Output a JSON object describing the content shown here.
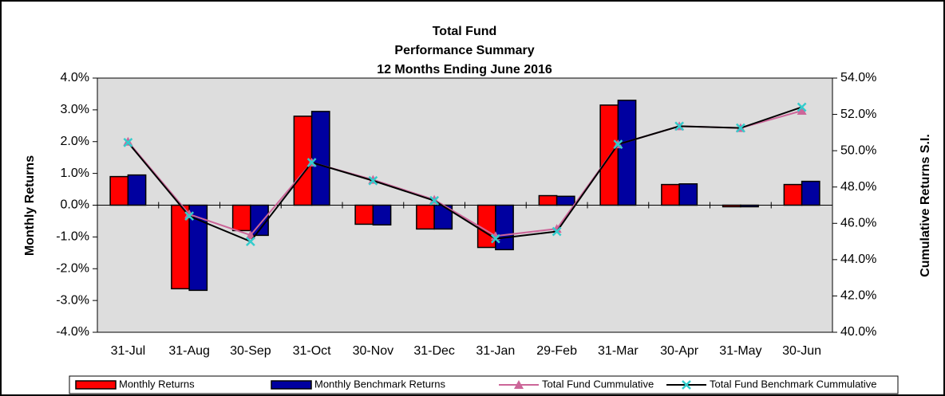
{
  "chart_data": {
    "type": "bar",
    "title": [
      "Total Fund",
      "Performance Summary",
      "12 Months Ending June 2016"
    ],
    "ylabel": "Monthly Returns",
    "y2label": "Cumulative Returns S.I.",
    "categories": [
      "31-Jul",
      "31-Aug",
      "30-Sep",
      "31-Oct",
      "30-Nov",
      "31-Dec",
      "31-Jan",
      "29-Feb",
      "31-Mar",
      "30-Apr",
      "31-May",
      "30-Jun"
    ],
    "series": [
      {
        "name": "Monthly Returns",
        "type": "bar",
        "color": "#ff0000",
        "values": [
          0.9,
          -2.63,
          -0.8,
          2.8,
          -0.6,
          -0.75,
          -1.33,
          0.3,
          3.15,
          0.65,
          -0.05,
          0.65
        ]
      },
      {
        "name": "Monthly Benchmark Returns",
        "type": "bar",
        "color": "#0000a0",
        "values": [
          0.95,
          -2.68,
          -0.95,
          2.95,
          -0.62,
          -0.75,
          -1.4,
          0.28,
          3.3,
          0.67,
          -0.05,
          0.75
        ]
      },
      {
        "name": "Total Fund Cummulative",
        "type": "line",
        "axis": "y2",
        "color": "#cc6699",
        "marker": "triangle",
        "values": [
          50.5,
          46.5,
          45.35,
          49.35,
          48.4,
          47.3,
          45.3,
          45.7,
          50.35,
          51.35,
          51.25,
          52.2
        ]
      },
      {
        "name": "Total Fund Benchmark Cummulative",
        "type": "line",
        "axis": "y2",
        "color": "#000000",
        "marker": "x",
        "marker_color": "#33cccc",
        "values": [
          50.45,
          46.4,
          45.0,
          49.35,
          48.35,
          47.25,
          45.15,
          45.55,
          50.35,
          51.35,
          51.25,
          52.4
        ]
      }
    ],
    "ylim": [
      -4,
      4
    ],
    "yticks": [
      {
        "value": -4,
        "label": "-4.0%"
      },
      {
        "value": -3,
        "label": "-3.0%"
      },
      {
        "value": -2,
        "label": "-2.0%"
      },
      {
        "value": -1,
        "label": "-1.0%"
      },
      {
        "value": 0,
        "label": "0.0%"
      },
      {
        "value": 1,
        "label": "1.0%"
      },
      {
        "value": 2,
        "label": "2.0%"
      },
      {
        "value": 3,
        "label": "3.0%"
      },
      {
        "value": 4,
        "label": "4.0%"
      }
    ],
    "y2lim": [
      40,
      54
    ],
    "y2ticks": [
      {
        "value": 40,
        "label": "40.0%"
      },
      {
        "value": 42,
        "label": "42.0%"
      },
      {
        "value": 44,
        "label": "44.0%"
      },
      {
        "value": 46,
        "label": "46.0%"
      },
      {
        "value": 48,
        "label": "48.0%"
      },
      {
        "value": 50,
        "label": "50.0%"
      },
      {
        "value": 52,
        "label": "52.0%"
      },
      {
        "value": 54,
        "label": "54.0%"
      }
    ],
    "grid": false,
    "legend": "bottom",
    "plot_background": "#dddddd"
  }
}
